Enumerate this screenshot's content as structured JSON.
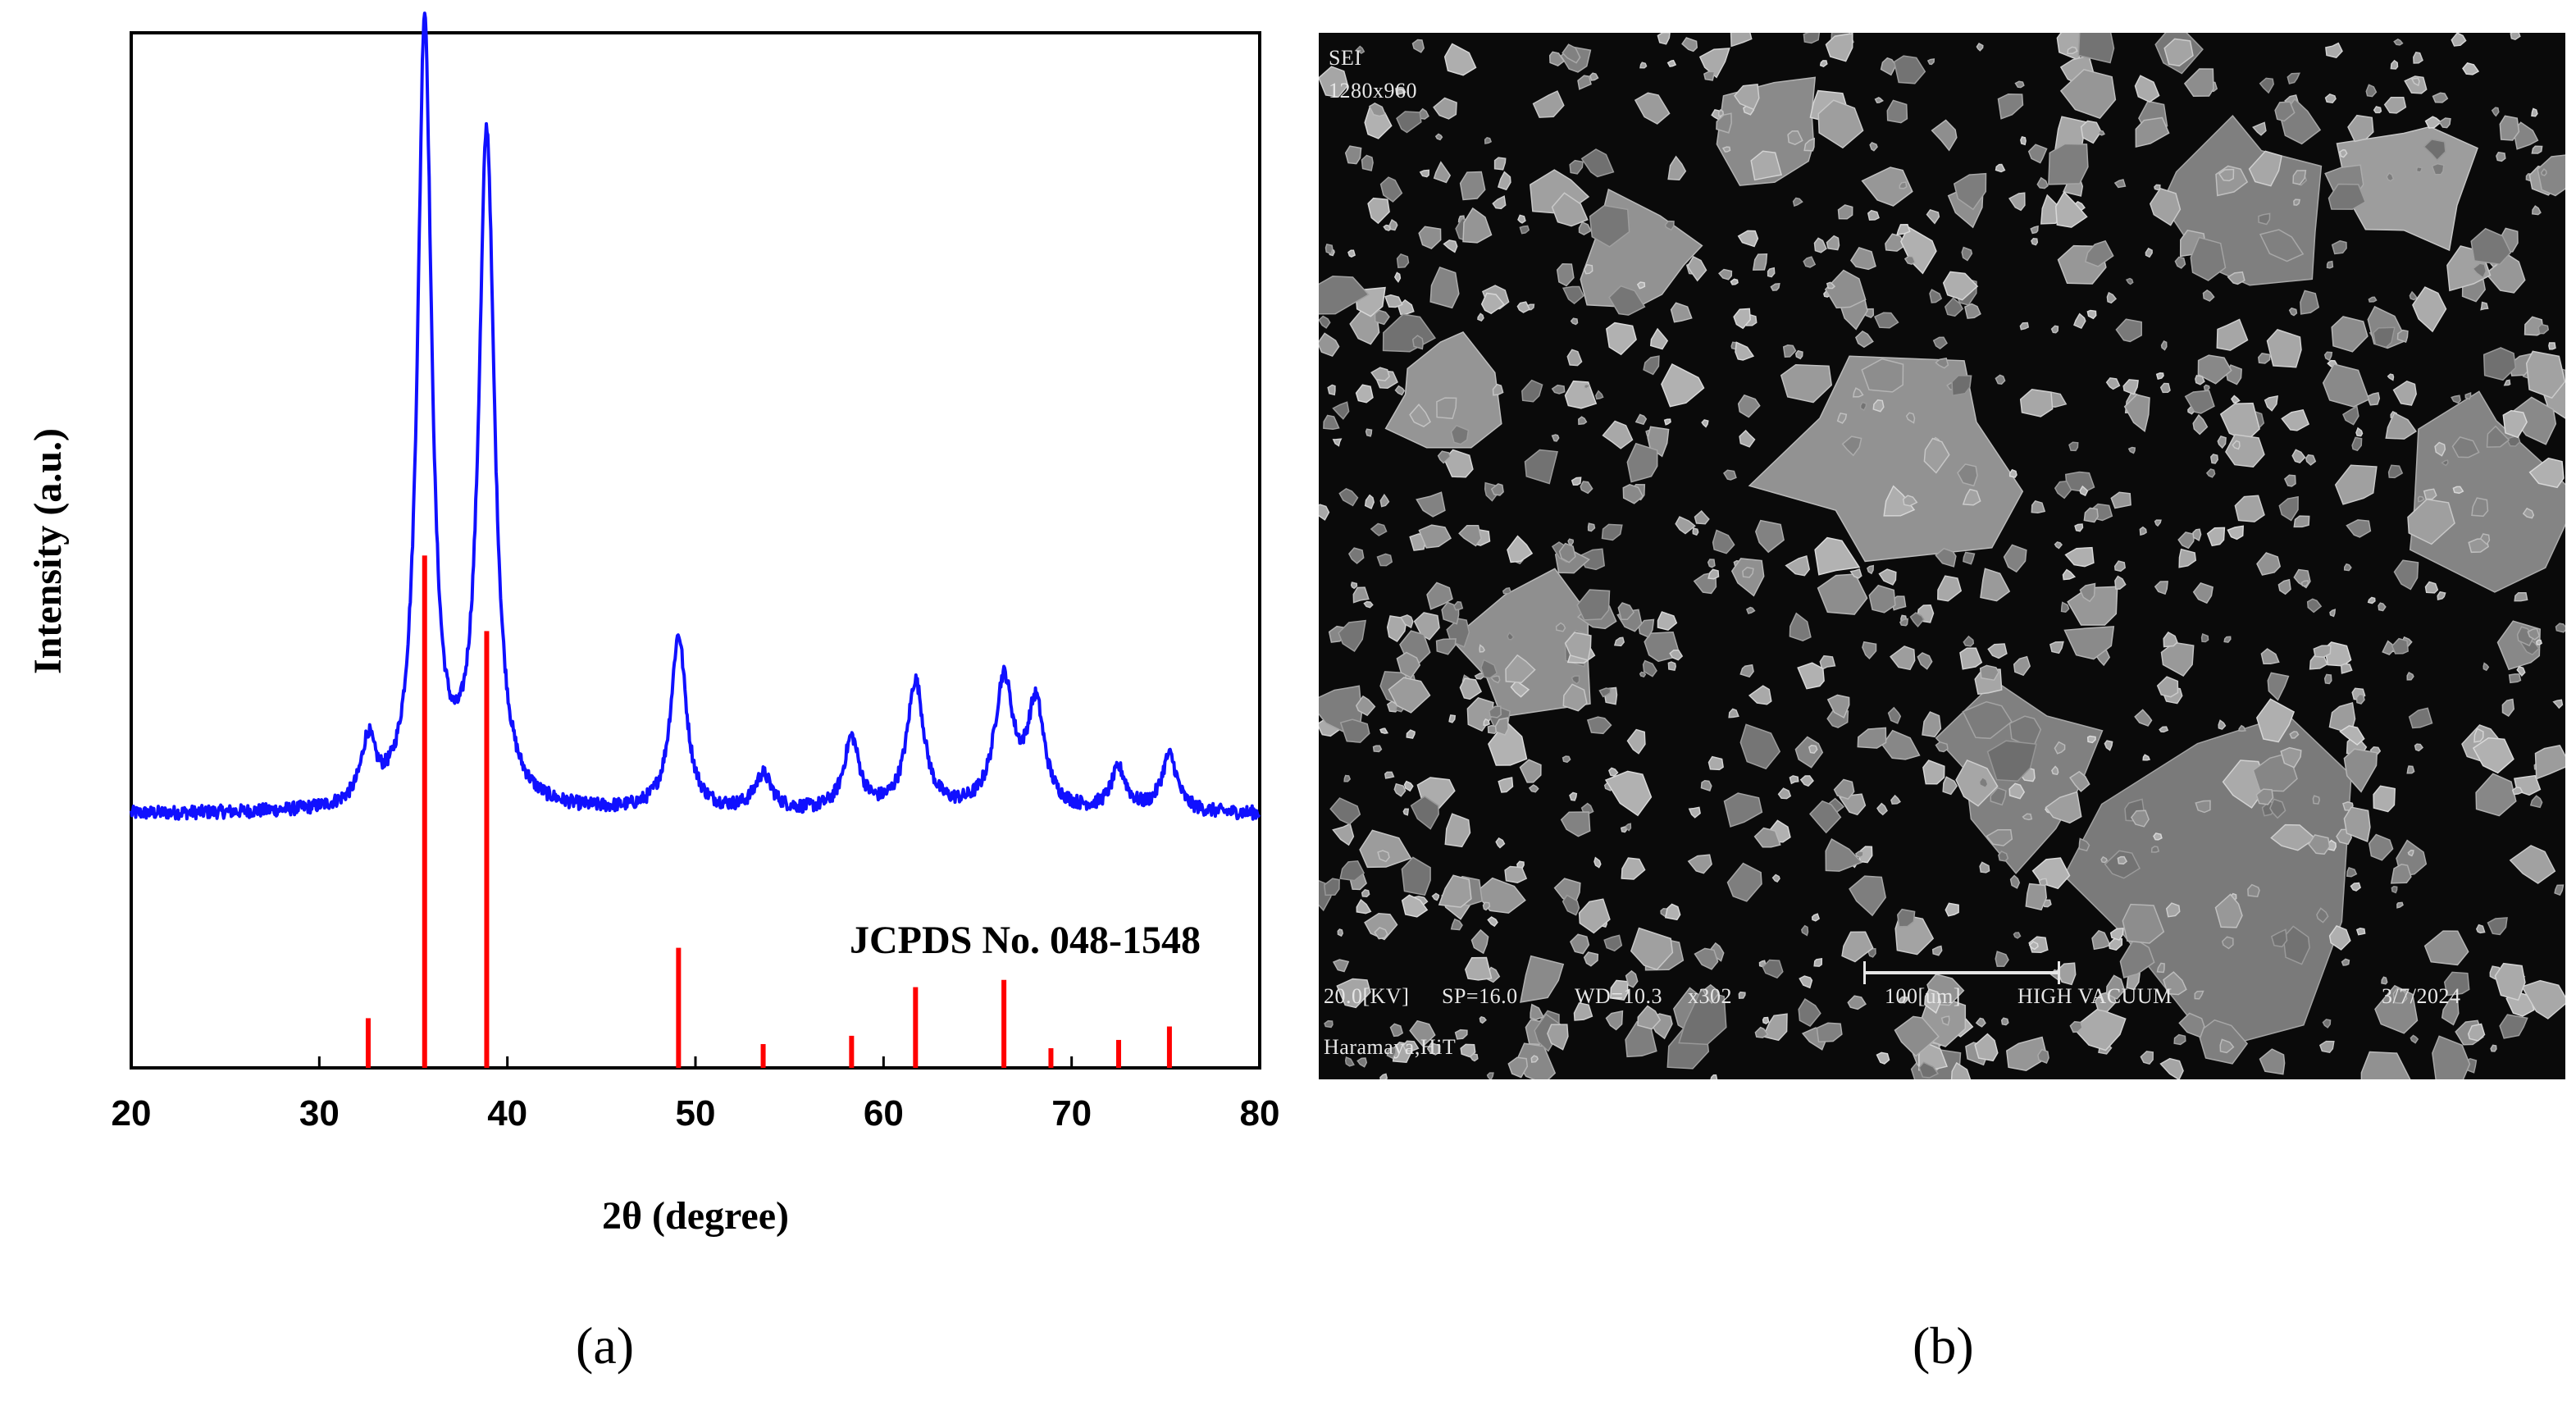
{
  "panel_labels": {
    "a": "(a)",
    "b": "(b)"
  },
  "chart_data": {
    "type": "line",
    "xlabel": "2θ (degree)",
    "ylabel": "Intensity (a.u.)",
    "xlim": [
      20,
      80
    ],
    "ylim": [
      0,
      100
    ],
    "xticks": [
      "20",
      "30",
      "40",
      "50",
      "60",
      "70",
      "80"
    ],
    "grid": false,
    "annotation": "JCPDS No. 048-1548",
    "colors": {
      "pattern": "#1010ff",
      "reference": "#ff0000",
      "axis": "#000000"
    },
    "series": [
      {
        "type": "line",
        "baseline": 24.5,
        "peaks": [
          {
            "x": 32.6,
            "height": 6,
            "width": 0.45
          },
          {
            "x": 35.6,
            "height": 76,
            "width": 0.45
          },
          {
            "x": 38.9,
            "height": 65,
            "width": 0.5
          },
          {
            "x": 49.1,
            "height": 17,
            "width": 0.5
          },
          {
            "x": 53.6,
            "height": 3.5,
            "width": 0.55
          },
          {
            "x": 58.3,
            "height": 7,
            "width": 0.5
          },
          {
            "x": 61.7,
            "height": 12.5,
            "width": 0.55
          },
          {
            "x": 66.4,
            "height": 12.5,
            "width": 0.6
          },
          {
            "x": 68.1,
            "height": 10,
            "width": 0.55
          },
          {
            "x": 72.5,
            "height": 4,
            "width": 0.5
          },
          {
            "x": 75.2,
            "height": 5.5,
            "width": 0.5
          }
        ]
      },
      {
        "type": "bar",
        "values": [
          {
            "x": 32.6,
            "y": 4.8
          },
          {
            "x": 35.6,
            "y": 49.5
          },
          {
            "x": 38.9,
            "y": 42.2
          },
          {
            "x": 49.1,
            "y": 11.6
          },
          {
            "x": 53.6,
            "y": 2.3
          },
          {
            "x": 58.3,
            "y": 3.1
          },
          {
            "x": 61.7,
            "y": 7.8
          },
          {
            "x": 66.4,
            "y": 8.5
          },
          {
            "x": 68.9,
            "y": 1.9
          },
          {
            "x": 72.5,
            "y": 2.7
          },
          {
            "x": 75.2,
            "y": 4.0
          }
        ]
      }
    ]
  },
  "sem": {
    "header_line1": "SEI",
    "header_line2": "1280x960",
    "footer_kv": "20.0[KV]",
    "footer_sp": "SP=16.0",
    "footer_wd": "WD=10.3",
    "footer_mag": "x302",
    "footer_scale": "100[um]",
    "footer_mode": "HIGH VACUUM",
    "footer_date": "3/7/2024",
    "footer_site": "Haramaya,HiT"
  }
}
